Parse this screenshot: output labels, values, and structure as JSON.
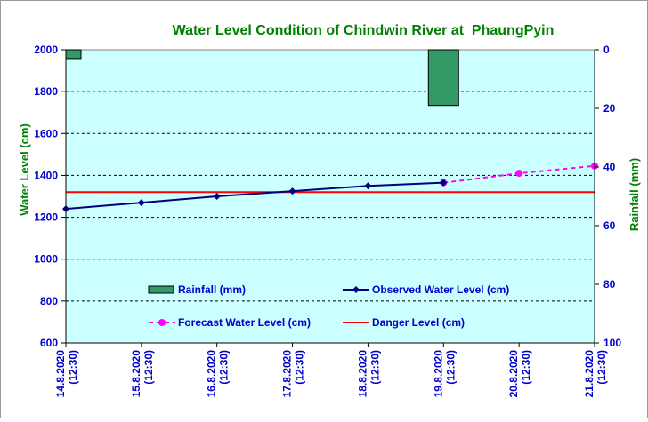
{
  "chart_data": {
    "type": "line",
    "title": "Water Level Condition of Chindwin River at  PhaungPyin",
    "ylabel": "Water Level (cm)",
    "y2label": "Rainfall (mm)",
    "ylim": [
      600,
      2000
    ],
    "yticks": [
      600,
      800,
      1000,
      1200,
      1400,
      1600,
      1800,
      2000
    ],
    "y2lim": [
      0,
      100
    ],
    "y2ticks": [
      0,
      20,
      40,
      60,
      80,
      100
    ],
    "y2_inverted": true,
    "grid": "horizontal dashed",
    "legend_position": "inside lower area, two columns",
    "categories": [
      [
        "14.8.2020",
        "(12:30)"
      ],
      [
        "15.8.2020",
        "(12:30)"
      ],
      [
        "16.8.2020",
        "(12:30)"
      ],
      [
        "17.8.2020",
        "(12:30)"
      ],
      [
        "18.8.2020",
        "(12:30)"
      ],
      [
        "19.8.2020",
        "(12:30)"
      ],
      [
        "20.8.2020",
        "(12:30)"
      ],
      [
        "21.8.2020",
        "(12:30)"
      ]
    ],
    "series": [
      {
        "name": "Rainfall (mm)",
        "kind": "bar",
        "axis": "y2",
        "color": "#339966",
        "values": [
          3,
          null,
          null,
          null,
          null,
          19,
          null,
          null
        ]
      },
      {
        "name": "Observed Water Level (cm)",
        "kind": "line",
        "axis": "y",
        "color": "#000080",
        "values": [
          1240,
          1270,
          1300,
          1325,
          1350,
          1365,
          null,
          null
        ]
      },
      {
        "name": "Forecast Water Level (cm)",
        "kind": "dashed-line",
        "axis": "y",
        "color": "#ff00ff",
        "values": [
          null,
          null,
          null,
          null,
          null,
          1365,
          1410,
          1445
        ]
      },
      {
        "name": "Danger Level (cm)",
        "kind": "line",
        "axis": "y",
        "color": "#ff0000",
        "values": [
          1320,
          1320,
          1320,
          1320,
          1320,
          1320,
          1320,
          1320
        ]
      }
    ]
  },
  "colors": {
    "plot_background": "#ccffff",
    "title": "#008000",
    "tick_labels": "#0000cc",
    "axis_titles": "#008000"
  }
}
